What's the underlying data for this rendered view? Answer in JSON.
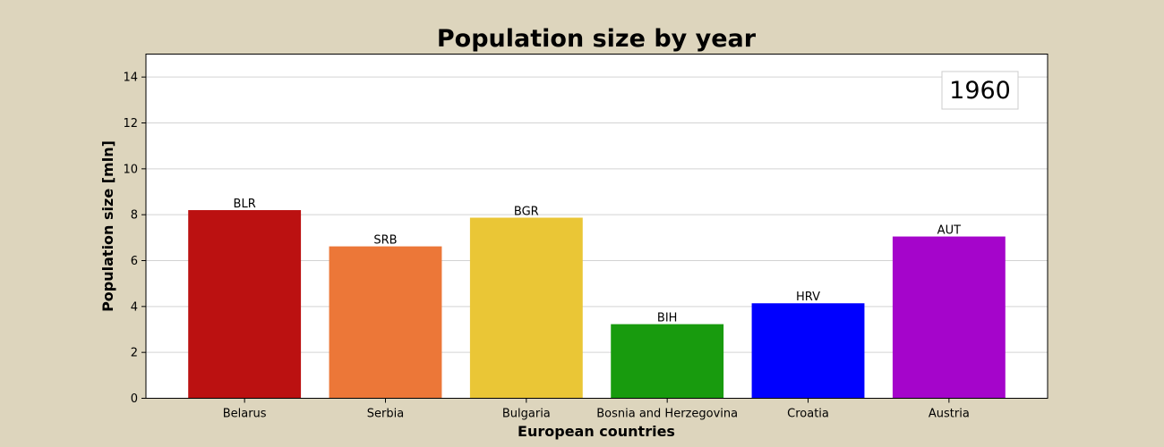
{
  "colors": {
    "background": "#ddd5bd",
    "plot_background": "#ffffff",
    "grid": "#d3d3d3"
  },
  "chart_data": {
    "type": "bar",
    "title": "Population size by year",
    "xlabel": "European countries",
    "ylabel": "Population size [mln]",
    "ylim": [
      0,
      15
    ],
    "yticks": [
      0,
      2,
      4,
      6,
      8,
      10,
      12,
      14
    ],
    "grid": "y",
    "year_badge": "1960",
    "year_badge_position": "top-right",
    "categories": [
      "Belarus",
      "Serbia",
      "Bulgaria",
      "Bosnia and Herzegovina",
      "Croatia",
      "Austria"
    ],
    "codes": [
      "BLR",
      "SRB",
      "BGR",
      "BIH",
      "HRV",
      "AUT"
    ],
    "values": [
      8.2,
      6.62,
      7.87,
      3.23,
      4.14,
      7.05
    ],
    "bar_colors": [
      "#bb1111",
      "#ec7738",
      "#eac636",
      "#189b0e",
      "#0000ff",
      "#a505cb"
    ]
  }
}
